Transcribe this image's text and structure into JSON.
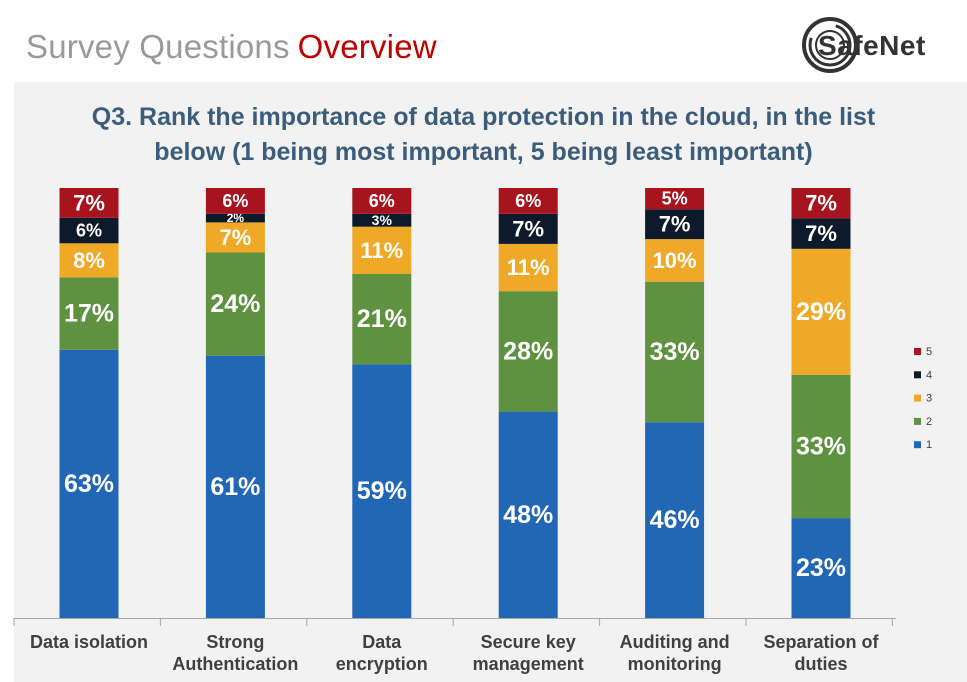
{
  "header": {
    "title_part1": "Survey Questions",
    "title_part2": "Overview",
    "logo_text": "SafeNet"
  },
  "question": {
    "line1": "Q3. Rank the importance of data protection in the cloud, in the list",
    "line2": "below (1 being most important, 5 being least important)"
  },
  "colors": {
    "series_1": "#2267b6",
    "series_2": "#5e9140",
    "series_3": "#f0a926",
    "series_4": "#0d1a2b",
    "series_5": "#a8141e"
  },
  "chart_data": {
    "type": "bar",
    "stacked": true,
    "categories": [
      "Data isolation",
      "Strong Authentication",
      "Data encryption",
      "Secure key management",
      "Auditing and monitoring",
      "Separation of duties"
    ],
    "category_lines": [
      [
        "Data isolation"
      ],
      [
        "Strong",
        "Authentication"
      ],
      [
        "Data",
        "encryption"
      ],
      [
        "Secure key",
        "management"
      ],
      [
        "Auditing and",
        "monitoring"
      ],
      [
        "Separation of",
        "duties"
      ]
    ],
    "series": [
      {
        "name": "1",
        "values": [
          63,
          61,
          59,
          48,
          46,
          23
        ],
        "labels": [
          "63%",
          "61%",
          "59%",
          "48%",
          "46%",
          "23%"
        ]
      },
      {
        "name": "2",
        "values": [
          17,
          24,
          21,
          28,
          33,
          33
        ],
        "labels": [
          "17%",
          "24%",
          "21%",
          "28%",
          "33%",
          "33%"
        ]
      },
      {
        "name": "3",
        "values": [
          8,
          7,
          11,
          11,
          10,
          29
        ],
        "labels": [
          "8%",
          "7%",
          "11%",
          "11%",
          "10%",
          "29%"
        ]
      },
      {
        "name": "4",
        "values": [
          6,
          2,
          3,
          7,
          7,
          7
        ],
        "labels": [
          "6%",
          "2%",
          "3%",
          "7%",
          "7%",
          "7%"
        ]
      },
      {
        "name": "5",
        "values": [
          7,
          6,
          6,
          6,
          5,
          7
        ],
        "labels": [
          "7%",
          "6%",
          "6%",
          "6%",
          "5%",
          "7%"
        ]
      }
    ],
    "legend": [
      "5",
      "4",
      "3",
      "2",
      "1"
    ],
    "legend_position": "right",
    "ylim": [
      0,
      100
    ],
    "grid": false
  }
}
